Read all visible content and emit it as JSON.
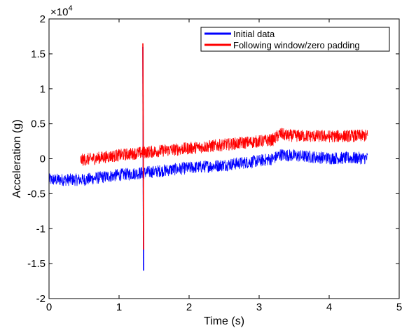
{
  "chart_data": {
    "type": "line",
    "xlabel": "Time (s)",
    "ylabel": "Acceleration (g)",
    "xlim": [
      0,
      5
    ],
    "ylim": [
      -20000,
      20000
    ],
    "x_ticks": [
      0,
      1,
      2,
      3,
      4,
      5
    ],
    "y_ticks": [
      -2,
      -1.5,
      -1,
      -0.5,
      0,
      0.5,
      1,
      1.5,
      2
    ],
    "y_multiplier": "×10",
    "y_multiplier_exponent": "4",
    "grid": false,
    "legend_position": "top-right",
    "series": [
      {
        "name": "Initial data",
        "color": "#0000ff",
        "baseline": [
          [
            0,
            -3000
          ],
          [
            0.5,
            -3000
          ],
          [
            1,
            -2300
          ],
          [
            1.35,
            -2000
          ],
          [
            2,
            -1300
          ],
          [
            2.5,
            -900
          ],
          [
            3.0,
            -300
          ],
          [
            3.2,
            0
          ],
          [
            3.3,
            600
          ],
          [
            3.4,
            500
          ],
          [
            4.0,
            100
          ],
          [
            4.55,
            100
          ]
        ],
        "noise_amplitude": 900,
        "spike": {
          "x": 1.34,
          "y_min": -16000,
          "y_max": 16000
        }
      },
      {
        "name": "Following window/zero padding",
        "color": "#ff0000",
        "x_range": [
          0.45,
          4.55
        ],
        "baseline": [
          [
            0.45,
            -200
          ],
          [
            1.0,
            500
          ],
          [
            1.35,
            900
          ],
          [
            2.0,
            1500
          ],
          [
            2.5,
            2000
          ],
          [
            3.2,
            2700
          ],
          [
            3.3,
            3600
          ],
          [
            3.4,
            3300
          ],
          [
            4.0,
            3200
          ],
          [
            4.55,
            3300
          ]
        ],
        "noise_amplitude": 900,
        "spike": {
          "x": 1.34,
          "y_min": -13000,
          "y_max": 16500
        }
      }
    ]
  }
}
